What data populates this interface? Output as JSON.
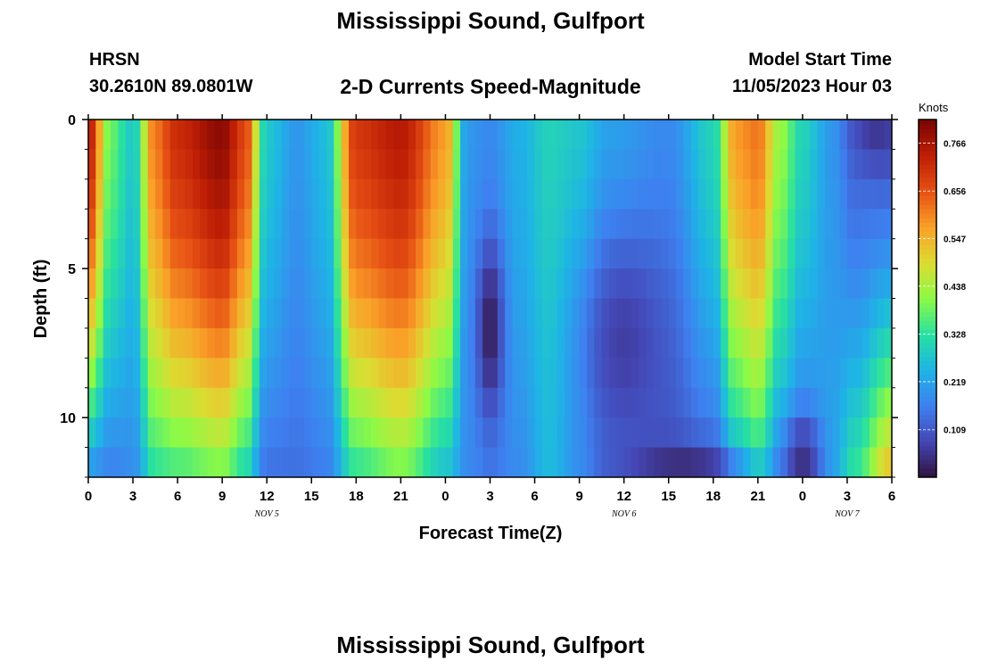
{
  "header": {
    "title": "Mississippi Sound, Gulfport",
    "station_code": "HRSN",
    "coordinates": "30.2610N  89.0801W",
    "plot_title": "2-D Currents Speed-Magnitude",
    "model_start_label": "Model Start Time",
    "model_start_value": "11/05/2023 Hour 03"
  },
  "footer": {
    "title": "Mississippi Sound, Gulfport"
  },
  "chart_data": {
    "type": "heatmap",
    "title": "2-D Currents Speed-Magnitude",
    "xlabel": "Forecast Time(Z)",
    "ylabel": "Depth (ft)",
    "x_unit": "forecast hours from 00Z Nov 5",
    "xlim": [
      0,
      54
    ],
    "ylim": [
      0,
      12
    ],
    "y_inverted": true,
    "x_tick_values": [
      0,
      3,
      6,
      9,
      12,
      15,
      18,
      21,
      24,
      27,
      30,
      33,
      36,
      39,
      42,
      45,
      48,
      51,
      54
    ],
    "x_tick_labels": [
      "0",
      "3",
      "6",
      "9",
      "12",
      "15",
      "18",
      "21",
      "0",
      "3",
      "6",
      "9",
      "12",
      "15",
      "18",
      "21",
      "0",
      "3",
      "6"
    ],
    "y_tick_values": [
      0,
      5,
      10
    ],
    "y_tick_labels": [
      "0",
      "5",
      "10"
    ],
    "date_labels": [
      {
        "text": "NOV 5",
        "x": 12
      },
      {
        "text": "NOV 6",
        "x": 36
      },
      {
        "text": "NOV 7",
        "x": 51
      }
    ],
    "colorbar": {
      "label": "Knots",
      "min": 0.0,
      "max": 0.82,
      "ticks": [
        0.109,
        0.219,
        0.328,
        0.438,
        0.547,
        0.656,
        0.766
      ]
    },
    "grid": {
      "x_step_hours": 0.5,
      "depths": [
        0.5,
        1.5,
        2.5,
        3.5,
        4.5,
        5.5,
        6.5,
        7.5,
        8.5,
        9.5,
        10.5,
        11.5
      ]
    },
    "keyframes": [
      {
        "t": 0,
        "s": 0.75,
        "b": 0.18
      },
      {
        "t": 1.5,
        "s": 0.38,
        "b": 0.16
      },
      {
        "t": 3,
        "s": 0.28,
        "b": 0.18
      },
      {
        "t": 4.5,
        "s": 0.62,
        "b": 0.32
      },
      {
        "t": 6,
        "s": 0.72,
        "b": 0.34
      },
      {
        "t": 9,
        "s": 0.8,
        "b": 0.38
      },
      {
        "t": 10.5,
        "s": 0.68,
        "b": 0.3
      },
      {
        "t": 12,
        "s": 0.28,
        "b": 0.14
      },
      {
        "t": 14,
        "s": 0.2,
        "b": 0.14
      },
      {
        "t": 16,
        "s": 0.26,
        "b": 0.16
      },
      {
        "t": 18,
        "s": 0.7,
        "b": 0.32
      },
      {
        "t": 21,
        "s": 0.75,
        "b": 0.38
      },
      {
        "t": 24,
        "s": 0.58,
        "b": 0.26
      },
      {
        "t": 25.5,
        "s": 0.2,
        "b": 0.18
      },
      {
        "t": 27,
        "s": 0.18,
        "b": 0.16
      },
      {
        "t": 29,
        "s": 0.24,
        "b": 0.18
      },
      {
        "t": 31,
        "s": 0.3,
        "b": 0.26
      },
      {
        "t": 33,
        "s": 0.28,
        "b": 0.2
      },
      {
        "t": 35,
        "s": 0.22,
        "b": 0.14
      },
      {
        "t": 39,
        "s": 0.18,
        "b": 0.1
      },
      {
        "t": 42,
        "s": 0.3,
        "b": 0.12
      },
      {
        "t": 43.5,
        "s": 0.58,
        "b": 0.24
      },
      {
        "t": 45,
        "s": 0.62,
        "b": 0.3
      },
      {
        "t": 46.5,
        "s": 0.42,
        "b": 0.18
      },
      {
        "t": 48,
        "s": 0.3,
        "b": 0.14
      },
      {
        "t": 50,
        "s": 0.2,
        "b": 0.22
      },
      {
        "t": 51.5,
        "s": 0.12,
        "b": 0.34
      },
      {
        "t": 54,
        "s": 0.1,
        "b": 0.55
      }
    ],
    "low_spots": [
      {
        "t": 27,
        "d": 7.0,
        "v": 0.02,
        "rt": 0.9,
        "rd": 3.0
      },
      {
        "t": 36,
        "d": 7.5,
        "v": 0.07,
        "rt": 3.0,
        "rd": 4.0
      },
      {
        "t": 40,
        "d": 11.8,
        "v": 0.04,
        "rt": 3.5,
        "rd": 0.9
      },
      {
        "t": 48,
        "d": 11.5,
        "v": 0.05,
        "rt": 1.2,
        "rd": 1.5
      },
      {
        "t": 53,
        "d": 0.4,
        "v": 0.06,
        "rt": 1.5,
        "rd": 1.2
      }
    ]
  }
}
